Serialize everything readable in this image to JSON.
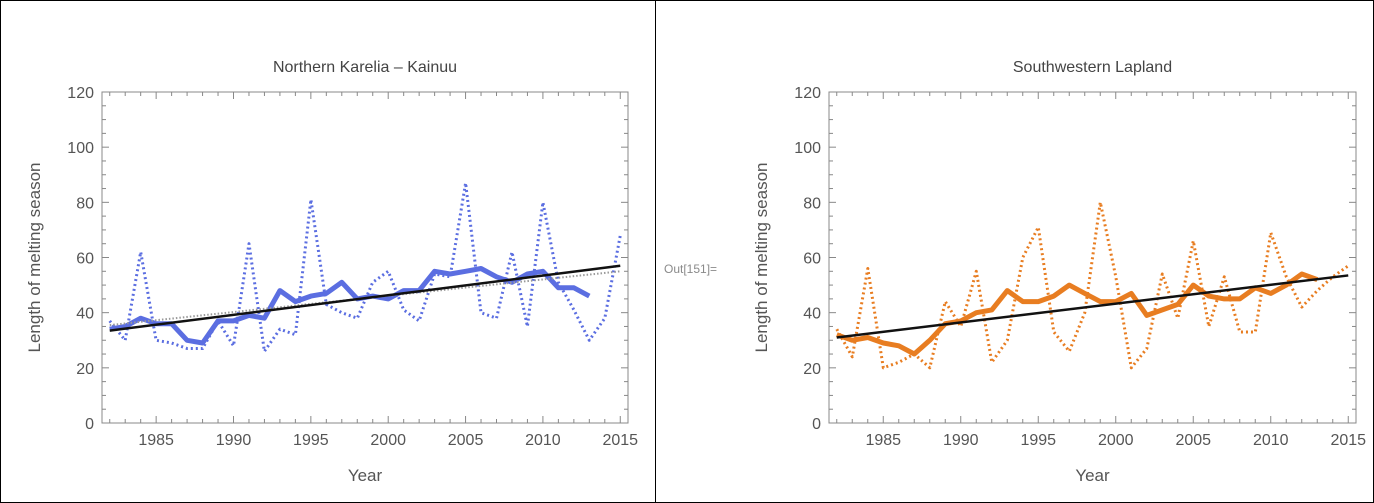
{
  "out_label": "Out[151]=",
  "chart_data": [
    {
      "type": "line",
      "title": "Northern Karelia – Kainuu",
      "xlabel": "Year",
      "ylabel": "Length of melting season",
      "xlim": [
        1981.5,
        2015.5
      ],
      "ylim": [
        0,
        120
      ],
      "xticks": [
        1985,
        1990,
        1995,
        2000,
        2005,
        2010,
        2015
      ],
      "yticks": [
        0,
        20,
        40,
        60,
        80,
        100,
        120
      ],
      "grid": false,
      "colors": {
        "series": "#5b6ee1",
        "trend": "#111111",
        "trend2": "#9a9a9a"
      },
      "series": [
        {
          "style": "dotted",
          "x": [
            1982,
            1983,
            1984,
            1985,
            1986,
            1987,
            1988,
            1989,
            1990,
            1991,
            1992,
            1993,
            1994,
            1995,
            1996,
            1997,
            1998,
            1999,
            2000,
            2001,
            2002,
            2003,
            2004,
            2005,
            2006,
            2007,
            2008,
            2009,
            2010,
            2011,
            2012,
            2013,
            2014,
            2015
          ],
          "y": [
            37,
            30,
            62,
            30,
            29,
            27,
            27,
            37,
            28,
            65,
            26,
            34,
            32,
            81,
            43,
            40,
            38,
            51,
            55,
            41,
            37,
            54,
            53,
            87,
            40,
            38,
            62,
            35,
            80,
            51,
            41,
            30,
            38,
            68
          ]
        },
        {
          "style": "solid",
          "x": [
            1982,
            1983,
            1984,
            1985,
            1986,
            1987,
            1988,
            1989,
            1990,
            1991,
            1992,
            1993,
            1994,
            1995,
            1996,
            1997,
            1998,
            1999,
            2000,
            2001,
            2002,
            2003,
            2004,
            2005,
            2006,
            2007,
            2008,
            2009,
            2010,
            2011,
            2012,
            2013
          ],
          "y": [
            34,
            35,
            38,
            36,
            36,
            30,
            29,
            37,
            37,
            39,
            38,
            48,
            44,
            46,
            47,
            51,
            45,
            46,
            45,
            48,
            48,
            55,
            54,
            55,
            56,
            53,
            51,
            54,
            55,
            49,
            49,
            46
          ]
        }
      ],
      "trend": {
        "x": [
          1982,
          2015
        ],
        "y": [
          33.5,
          57
        ]
      },
      "trend2": {
        "x": [
          1982,
          2015
        ],
        "y": [
          35.5,
          55
        ]
      }
    },
    {
      "type": "line",
      "title": "Southwestern Lapland",
      "xlabel": "Year",
      "ylabel": "Length of melting season",
      "xlim": [
        1981.5,
        2015.5
      ],
      "ylim": [
        0,
        120
      ],
      "xticks": [
        1985,
        1990,
        1995,
        2000,
        2005,
        2010,
        2015
      ],
      "yticks": [
        0,
        20,
        40,
        60,
        80,
        100,
        120
      ],
      "grid": false,
      "colors": {
        "series": "#e87d21",
        "trend": "#111111"
      },
      "series": [
        {
          "style": "dotted",
          "x": [
            1982,
            1983,
            1984,
            1985,
            1986,
            1987,
            1988,
            1989,
            1990,
            1991,
            1992,
            1993,
            1994,
            1995,
            1996,
            1997,
            1998,
            1999,
            2000,
            2001,
            2002,
            2003,
            2004,
            2005,
            2006,
            2007,
            2008,
            2009,
            2010,
            2011,
            2012,
            2013,
            2014,
            2015
          ],
          "y": [
            34,
            24,
            56,
            20,
            22,
            25,
            20,
            44,
            35,
            55,
            22,
            30,
            60,
            71,
            33,
            26,
            40,
            80,
            53,
            20,
            27,
            54,
            38,
            66,
            35,
            53,
            33,
            33,
            69,
            53,
            42,
            48,
            53,
            57
          ]
        },
        {
          "style": "solid",
          "x": [
            1982,
            1983,
            1984,
            1985,
            1986,
            1987,
            1988,
            1989,
            1990,
            1991,
            1992,
            1993,
            1994,
            1995,
            1996,
            1997,
            1998,
            1999,
            2000,
            2001,
            2002,
            2003,
            2004,
            2005,
            2006,
            2007,
            2008,
            2009,
            2010,
            2011,
            2012,
            2013
          ],
          "y": [
            32,
            30,
            31,
            29,
            28,
            25,
            30,
            36,
            37,
            40,
            41,
            48,
            44,
            44,
            46,
            50,
            47,
            44,
            44,
            47,
            39,
            41,
            43,
            50,
            46,
            45,
            45,
            49,
            47,
            50,
            54,
            52
          ]
        }
      ],
      "trend": {
        "x": [
          1982,
          2015
        ],
        "y": [
          31,
          53.5
        ]
      }
    }
  ]
}
